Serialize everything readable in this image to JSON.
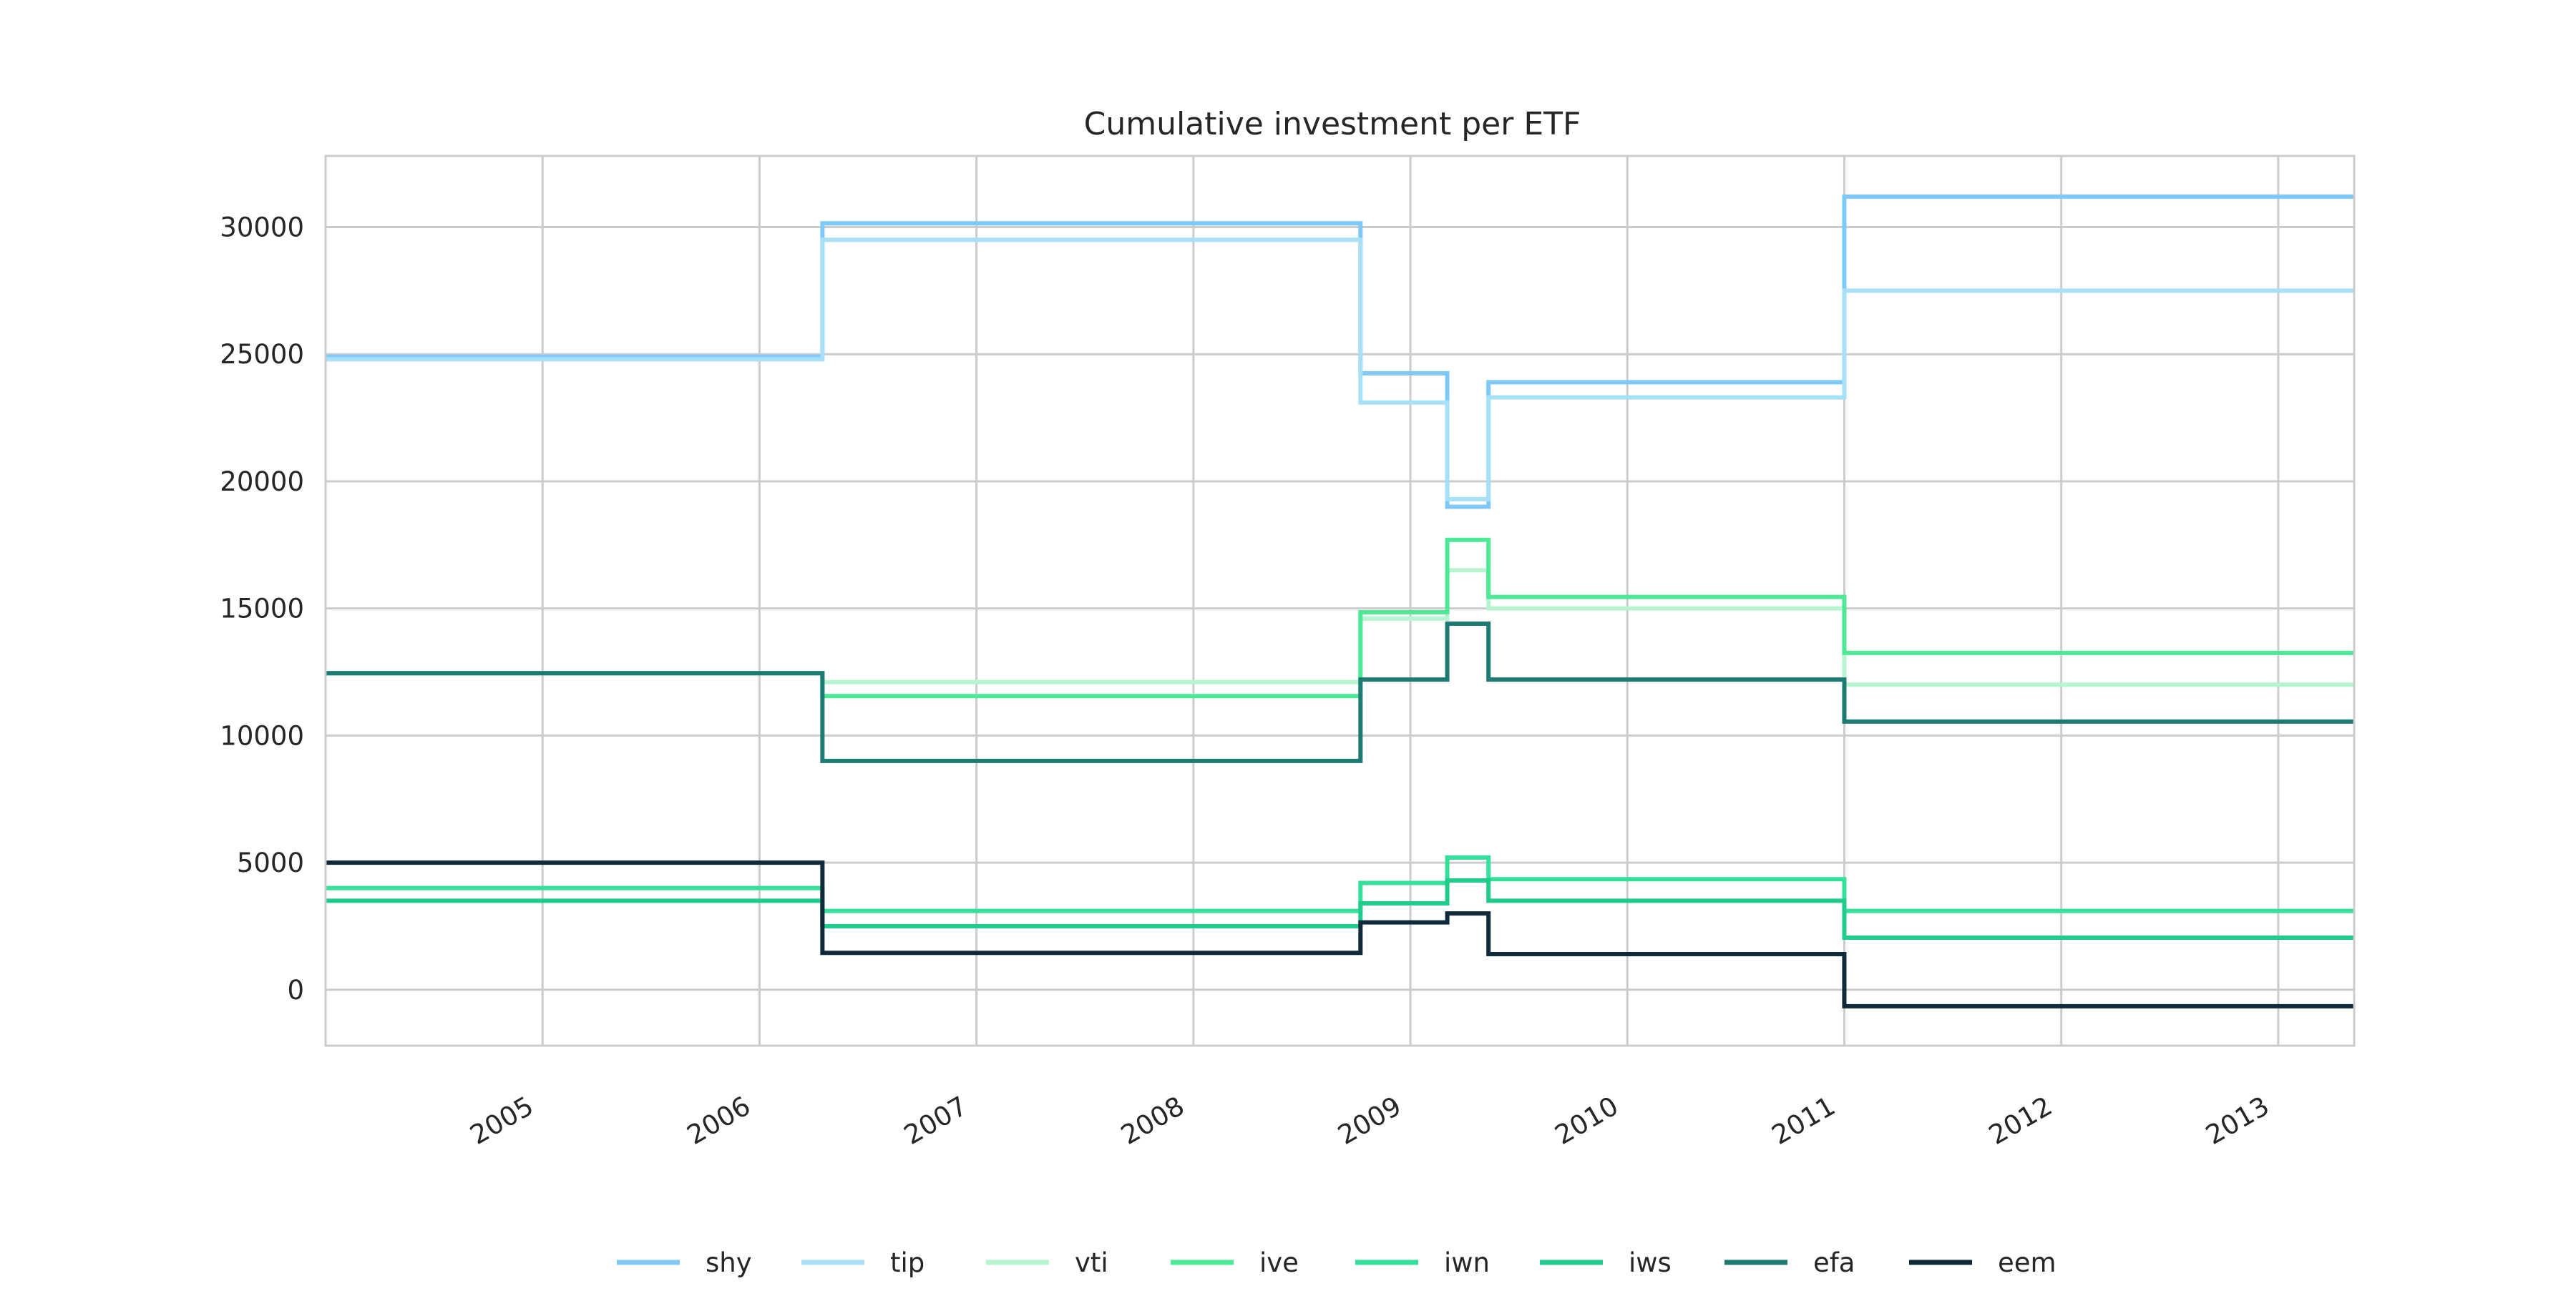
{
  "chart_data": {
    "type": "line",
    "title": "Cumulative investment per ETF",
    "xlabel": "",
    "ylabel": "",
    "x_axis_type": "date",
    "xlim": [
      2004.0,
      2013.35
    ],
    "ylim": [
      -2200,
      32800
    ],
    "x_ticks": [
      2005,
      2006,
      2007,
      2008,
      2009,
      2010,
      2011,
      2012,
      2013
    ],
    "x_tick_labels": [
      "2005",
      "2006",
      "2007",
      "2008",
      "2009",
      "2010",
      "2011",
      "2012",
      "2013"
    ],
    "y_ticks": [
      0,
      5000,
      10000,
      15000,
      20000,
      25000,
      30000
    ],
    "y_tick_labels": [
      "0",
      "5000",
      "10000",
      "15000",
      "20000",
      "25000",
      "30000"
    ],
    "grid": true,
    "step": "post",
    "legend_position": "bottom-center",
    "x": [
      2004.0,
      2006.29,
      2008.77,
      2009.17,
      2009.36,
      2011.0,
      2013.35
    ],
    "series": [
      {
        "name": "shy",
        "color": "#7fc8f8",
        "values": [
          24900,
          30150,
          24250,
          19000,
          23900,
          31200,
          31200
        ]
      },
      {
        "name": "tip",
        "color": "#a8e0f8",
        "values": [
          24800,
          29500,
          23100,
          19300,
          23300,
          27500,
          27500
        ]
      },
      {
        "name": "vti",
        "color": "#b6f5cf",
        "values": [
          12450,
          12100,
          14600,
          16500,
          15000,
          12000,
          12000
        ]
      },
      {
        "name": "ive",
        "color": "#4ee896",
        "values": [
          12450,
          11550,
          14850,
          17700,
          15450,
          13250,
          13250
        ]
      },
      {
        "name": "iwn",
        "color": "#35e09a",
        "values": [
          4000,
          3100,
          4200,
          5200,
          4350,
          3100,
          3100
        ]
      },
      {
        "name": "iws",
        "color": "#20cc8c",
        "values": [
          3500,
          2500,
          3400,
          4300,
          3500,
          2050,
          2050
        ]
      },
      {
        "name": "efa",
        "color": "#1e7b73",
        "values": [
          12450,
          9000,
          12200,
          14400,
          12200,
          10550,
          10550
        ]
      },
      {
        "name": "eem",
        "color": "#0f2a3a",
        "values": [
          5000,
          1450,
          2650,
          3000,
          1400,
          -650,
          -650
        ]
      }
    ]
  }
}
